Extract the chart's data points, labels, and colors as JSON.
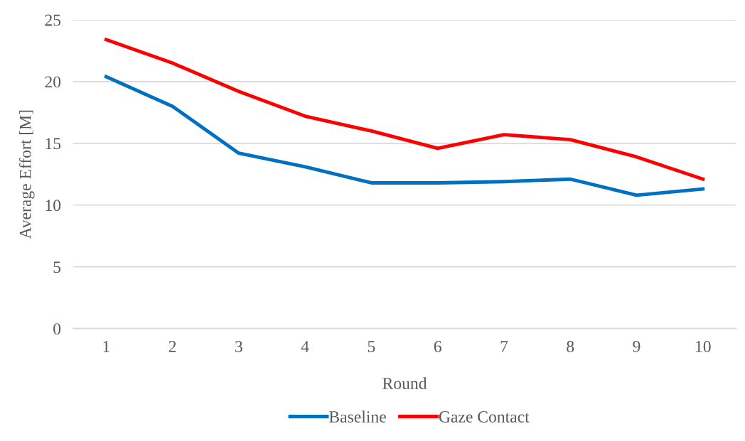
{
  "chart_data": {
    "type": "line",
    "xlabel": "Round",
    "ylabel": "Average Effort [M]",
    "categories": [
      "1",
      "2",
      "3",
      "4",
      "5",
      "6",
      "7",
      "8",
      "9",
      "10"
    ],
    "series": [
      {
        "name": "Baseline",
        "color": "#0070c0",
        "values": [
          20.4,
          18.0,
          14.2,
          13.1,
          11.8,
          11.8,
          11.9,
          12.1,
          10.8,
          11.3
        ]
      },
      {
        "name": "Gaze Contact",
        "color": "#ff0000",
        "values": [
          23.4,
          21.5,
          19.2,
          17.2,
          16.0,
          14.6,
          15.7,
          15.3,
          13.9,
          12.1
        ]
      }
    ],
    "ylim": [
      0,
      25
    ],
    "yticks": [
      0,
      5,
      10,
      15,
      20,
      25
    ],
    "grid": "y",
    "legend": "bottom",
    "marker": "none",
    "line_style": "solid"
  }
}
